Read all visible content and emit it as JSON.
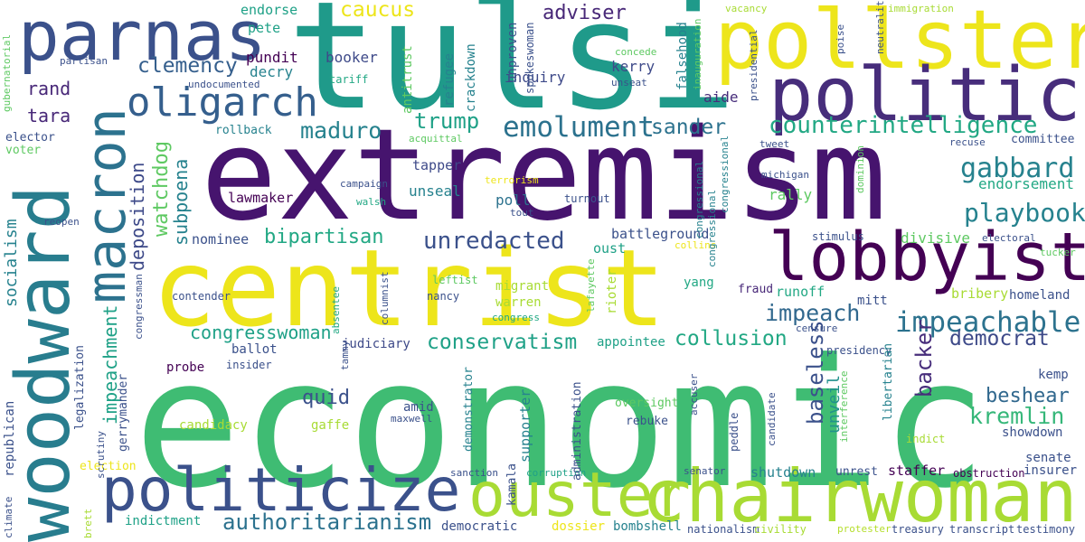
{
  "words": [
    {
      "text": "economic",
      "color": "#3fbc73"
    },
    {
      "text": "extremism",
      "color": "#46146e"
    },
    {
      "text": "centrist",
      "color": "#ede51b"
    },
    {
      "text": "tulsi",
      "color": "#1f9a8a"
    },
    {
      "text": "woodward",
      "color": "#287d8e"
    },
    {
      "text": "pollster",
      "color": "#ede51b"
    },
    {
      "text": "politico",
      "color": "#472d7b"
    },
    {
      "text": "lobbyist",
      "color": "#440154"
    },
    {
      "text": "chairwoman",
      "color": "#a8db34"
    },
    {
      "text": "ouster",
      "color": "#a8db34"
    },
    {
      "text": "politicize",
      "color": "#3b518b"
    },
    {
      "text": "parnas",
      "color": "#3b518b"
    },
    {
      "text": "macron",
      "color": "#2c728e"
    },
    {
      "text": "oligarch",
      "color": "#355f8d"
    },
    {
      "text": "counterintelligence",
      "color": "#22a884"
    },
    {
      "text": "emolument",
      "color": "#2c728e"
    },
    {
      "text": "authoritarianism",
      "color": "#2c728e"
    },
    {
      "text": "impeachable",
      "color": "#2c728e"
    },
    {
      "text": "unredacted",
      "color": "#3b518b"
    },
    {
      "text": "gabbard",
      "color": "#26828e"
    },
    {
      "text": "playbook",
      "color": "#26828e"
    },
    {
      "text": "conservatism",
      "color": "#1fa187"
    },
    {
      "text": "caucus",
      "color": "#ede51b"
    },
    {
      "text": "clemency",
      "color": "#355f8d"
    },
    {
      "text": "adviser",
      "color": "#482878"
    },
    {
      "text": "trump",
      "color": "#1fa187"
    },
    {
      "text": "maduro",
      "color": "#26828e"
    },
    {
      "text": "sander",
      "color": "#2c728e"
    },
    {
      "text": "bipartisan",
      "color": "#22a884"
    },
    {
      "text": "impeach",
      "color": "#31688e"
    },
    {
      "text": "collusion",
      "color": "#22a884"
    },
    {
      "text": "democrat",
      "color": "#3e4a89"
    },
    {
      "text": "kremlin",
      "color": "#35b779"
    },
    {
      "text": "beshear",
      "color": "#31688e"
    },
    {
      "text": "congresswoman",
      "color": "#1fa187"
    },
    {
      "text": "quid",
      "color": "#3b518b"
    },
    {
      "text": "rand",
      "color": "#482878"
    },
    {
      "text": "tara",
      "color": "#482878"
    },
    {
      "text": "watchdog",
      "color": "#5ec962"
    },
    {
      "text": "subpoena",
      "color": "#26828e"
    },
    {
      "text": "deposition",
      "color": "#3e4a89"
    },
    {
      "text": "impeachment",
      "color": "#1fa187"
    },
    {
      "text": "baseless",
      "color": "#3b518b"
    },
    {
      "text": "backer",
      "color": "#472d7b"
    },
    {
      "text": "unveil",
      "color": "#21918c"
    },
    {
      "text": "socialism",
      "color": "#26828e"
    },
    {
      "text": "endorsement",
      "color": "#22a884"
    },
    {
      "text": "pundit",
      "color": "#440154"
    },
    {
      "text": "decry",
      "color": "#26828e"
    },
    {
      "text": "booker",
      "color": "#3e4a89"
    },
    {
      "text": "pete",
      "color": "#1fa187"
    },
    {
      "text": "endorse",
      "color": "#1fa187"
    },
    {
      "text": "kerry",
      "color": "#3e4a89"
    },
    {
      "text": "inquiry",
      "color": "#3e4a89"
    },
    {
      "text": "aide",
      "color": "#472d7b"
    },
    {
      "text": "tapper",
      "color": "#3e4a89"
    },
    {
      "text": "unseal",
      "color": "#26828e"
    },
    {
      "text": "poll",
      "color": "#2c728e"
    },
    {
      "text": "rally",
      "color": "#5ec962"
    },
    {
      "text": "lawmaker",
      "color": "#440154"
    },
    {
      "text": "nominee",
      "color": "#3b518b"
    },
    {
      "text": "battleground",
      "color": "#3b518b"
    },
    {
      "text": "divisive",
      "color": "#5ec962"
    },
    {
      "text": "oust",
      "color": "#1fa187"
    },
    {
      "text": "runoff",
      "color": "#22a884"
    },
    {
      "text": "bribery",
      "color": "#a8db34"
    },
    {
      "text": "homeland",
      "color": "#3b518b"
    },
    {
      "text": "mitt",
      "color": "#3b518b"
    },
    {
      "text": "fraud",
      "color": "#482878"
    },
    {
      "text": "yang",
      "color": "#22a884"
    },
    {
      "text": "migrant",
      "color": "#a8db34"
    },
    {
      "text": "warren",
      "color": "#a8db34"
    },
    {
      "text": "appointee",
      "color": "#1fa187"
    },
    {
      "text": "ballot",
      "color": "#3b518b"
    },
    {
      "text": "probe",
      "color": "#440154"
    },
    {
      "text": "judiciary",
      "color": "#3e4a89"
    },
    {
      "text": "amid",
      "color": "#3b518b"
    },
    {
      "text": "oversight",
      "color": "#5ec962"
    },
    {
      "text": "rebuke",
      "color": "#3b518b"
    },
    {
      "text": "candidacy",
      "color": "#a8db34"
    },
    {
      "text": "gaffe",
      "color": "#a8db34"
    },
    {
      "text": "showdown",
      "color": "#3b518b"
    },
    {
      "text": "senate",
      "color": "#3b518b"
    },
    {
      "text": "insurer",
      "color": "#3b518b"
    },
    {
      "text": "staffer",
      "color": "#440154"
    },
    {
      "text": "shutdown",
      "color": "#26828e"
    },
    {
      "text": "unrest",
      "color": "#3b518b"
    },
    {
      "text": "obstruction",
      "color": "#440154"
    },
    {
      "text": "kemp",
      "color": "#3b518b"
    },
    {
      "text": "indict",
      "color": "#a8db34"
    },
    {
      "text": "indictment",
      "color": "#1fa187"
    },
    {
      "text": "democratic",
      "color": "#3b518b"
    },
    {
      "text": "dossier",
      "color": "#ede51b"
    },
    {
      "text": "bombshell",
      "color": "#26828e"
    },
    {
      "text": "nationalism",
      "color": "#3b518b"
    },
    {
      "text": "civility",
      "color": "#a8db34"
    },
    {
      "text": "protester",
      "color": "#b5de2b"
    },
    {
      "text": "treasury",
      "color": "#3b518b"
    },
    {
      "text": "transcript",
      "color": "#3b518b"
    },
    {
      "text": "testimony",
      "color": "#3b518b"
    },
    {
      "text": "election",
      "color": "#ede51b"
    },
    {
      "text": "sanction",
      "color": "#3b518b"
    },
    {
      "text": "corruption",
      "color": "#1fa187"
    },
    {
      "text": "senator",
      "color": "#3b518b"
    },
    {
      "text": "legalization",
      "color": "#3b518b"
    },
    {
      "text": "scrutiny",
      "color": "#3b518b"
    },
    {
      "text": "republican",
      "color": "#3b518b"
    },
    {
      "text": "climate",
      "color": "#3b518b"
    },
    {
      "text": "brett",
      "color": "#a8db34"
    },
    {
      "text": "gerrymander",
      "color": "#3b518b"
    },
    {
      "text": "congressman",
      "color": "#3b518b"
    },
    {
      "text": "insider",
      "color": "#3b518b"
    },
    {
      "text": "tammy",
      "color": "#3b518b"
    },
    {
      "text": "contender",
      "color": "#3b518b"
    },
    {
      "text": "nancy",
      "color": "#3b518b"
    },
    {
      "text": "leftist",
      "color": "#5ec962"
    },
    {
      "text": "columnist",
      "color": "#3b518b"
    },
    {
      "text": "absentee",
      "color": "#22a884"
    },
    {
      "text": "congress",
      "color": "#22a884"
    },
    {
      "text": "lafayette",
      "color": "#5ec962"
    },
    {
      "text": "rioter",
      "color": "#a8db34"
    },
    {
      "text": "demonstrator",
      "color": "#26828e"
    },
    {
      "text": "supporter",
      "color": "#26828e"
    },
    {
      "text": "administration",
      "color": "#3b518b"
    },
    {
      "text": "kamala",
      "color": "#3b518b"
    },
    {
      "text": "accuser",
      "color": "#3b518b"
    },
    {
      "text": "maxwell",
      "color": "#3b518b"
    },
    {
      "text": "peddle",
      "color": "#3b518b"
    },
    {
      "text": "candidate",
      "color": "#3b518b"
    },
    {
      "text": "interference",
      "color": "#5ec962"
    },
    {
      "text": "libertarian",
      "color": "#26828e"
    },
    {
      "text": "pentagon",
      "color": "#3b518b"
    },
    {
      "text": "presidency",
      "color": "#3b518b"
    },
    {
      "text": "censure",
      "color": "#3b518b"
    },
    {
      "text": "stimulus",
      "color": "#3b518b"
    },
    {
      "text": "electoral",
      "color": "#3b518b"
    },
    {
      "text": "tucker",
      "color": "#5ec962"
    },
    {
      "text": "committee",
      "color": "#3b518b"
    },
    {
      "text": "recuse",
      "color": "#3b518b"
    },
    {
      "text": "tweet",
      "color": "#3b518b"
    },
    {
      "text": "michigan",
      "color": "#3b518b"
    },
    {
      "text": "dominion",
      "color": "#5ec962"
    },
    {
      "text": "congressional",
      "color": "#26828e"
    },
    {
      "text": "collins",
      "color": "#ede51b"
    },
    {
      "text": "turnout",
      "color": "#3b518b"
    },
    {
      "text": "terrorism",
      "color": "#ede51b"
    },
    {
      "text": "campaign",
      "color": "#3b518b"
    },
    {
      "text": "walsh",
      "color": "#22a884"
    },
    {
      "text": "tout",
      "color": "#3b518b"
    },
    {
      "text": "reopen",
      "color": "#3b518b"
    },
    {
      "text": "elector",
      "color": "#3b518b"
    },
    {
      "text": "voter",
      "color": "#5ec962"
    },
    {
      "text": "gubernatorial",
      "color": "#5ec962"
    },
    {
      "text": "partisan",
      "color": "#3b518b"
    },
    {
      "text": "undocumented",
      "color": "#3b518b"
    },
    {
      "text": "rollback",
      "color": "#26828e"
    },
    {
      "text": "acquittal",
      "color": "#5ec962"
    },
    {
      "text": "tariff",
      "color": "#22a884"
    },
    {
      "text": "antitrust",
      "color": "#5ec962"
    },
    {
      "text": "refugee",
      "color": "#26828e"
    },
    {
      "text": "crackdown",
      "color": "#26828e"
    },
    {
      "text": "unproven",
      "color": "#3b518b"
    },
    {
      "text": "spokeswoman",
      "color": "#3b518b"
    },
    {
      "text": "falsehood",
      "color": "#26828e"
    },
    {
      "text": "inauguration",
      "color": "#5ec962"
    },
    {
      "text": "graham",
      "color": "#b5de2b"
    },
    {
      "text": "concede",
      "color": "#5ec962"
    },
    {
      "text": "unseat",
      "color": "#3b518b"
    },
    {
      "text": "presidential",
      "color": "#3b518b"
    },
    {
      "text": "vacancy",
      "color": "#a8db34"
    },
    {
      "text": "poise",
      "color": "#3b518b"
    },
    {
      "text": "neutrality",
      "color": "#3b518b"
    },
    {
      "text": "immigration",
      "color": "#a8db34"
    }
  ]
}
